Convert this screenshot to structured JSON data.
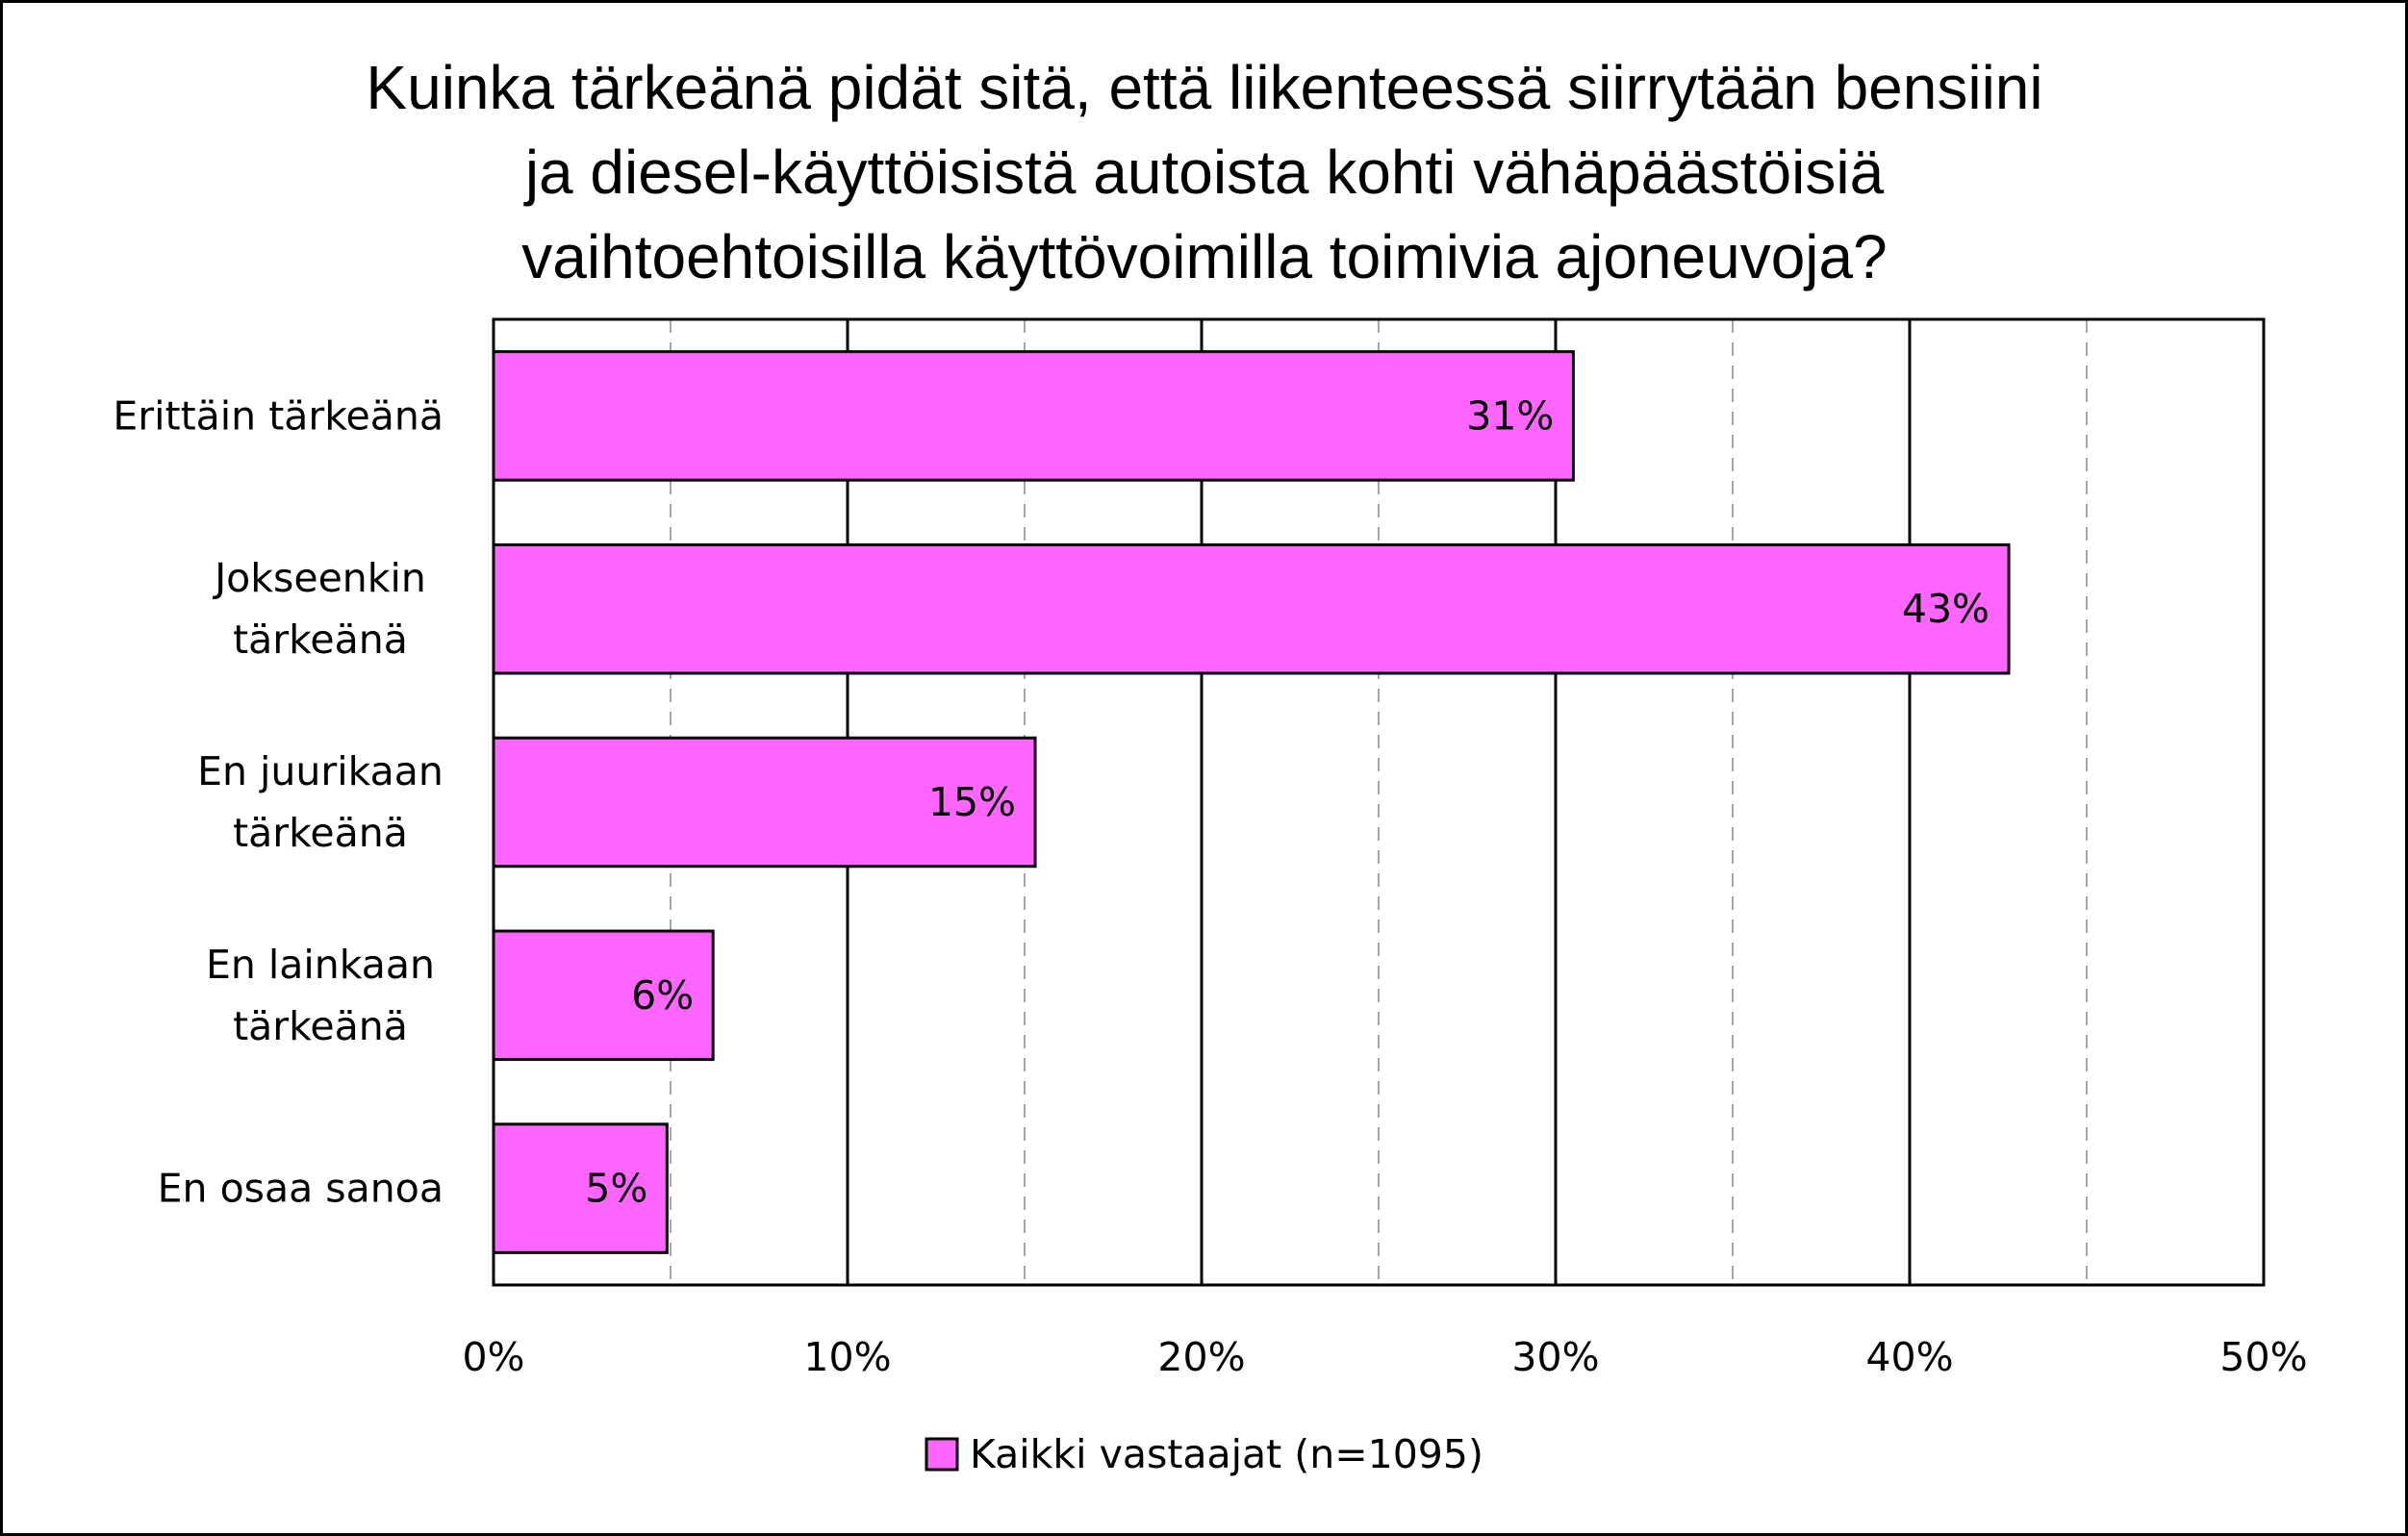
{
  "chart_data": {
    "type": "bar",
    "orientation": "horizontal",
    "title_lines": [
      "Kuinka tärkeänä pidät sitä, että liikenteessä siirrytään bensiini",
      "ja diesel-käyttöisistä autoista kohti vähäpäästöisiä",
      "vaihtoehtoisilla käyttövoimilla toimivia ajoneuvoja?"
    ],
    "categories": [
      [
        "Erittäin tärkeänä"
      ],
      [
        "Jokseenkin",
        "tärkeänä"
      ],
      [
        "En juurikaan",
        "tärkeänä"
      ],
      [
        "En lainkaan",
        "tärkeänä"
      ],
      [
        "En osaa sanoa"
      ]
    ],
    "series": [
      {
        "name": "Kaikki vastaajat (n=1095)",
        "values": [
          30.5,
          42.8,
          15.3,
          6.2,
          4.9
        ],
        "data_labels": [
          "31%",
          "43%",
          "15%",
          "6%",
          "5%"
        ],
        "color": "#ff66ff"
      }
    ],
    "xlim": [
      0,
      50
    ],
    "x_ticks": [
      0,
      10,
      20,
      30,
      40,
      50
    ],
    "x_tick_labels": [
      "0%",
      "10%",
      "20%",
      "30%",
      "40%",
      "50%"
    ],
    "grid": {
      "major": "solid",
      "minor": "dashed",
      "minor_ticks": [
        5,
        15,
        25,
        35,
        45
      ]
    },
    "legend_position": "bottom"
  }
}
